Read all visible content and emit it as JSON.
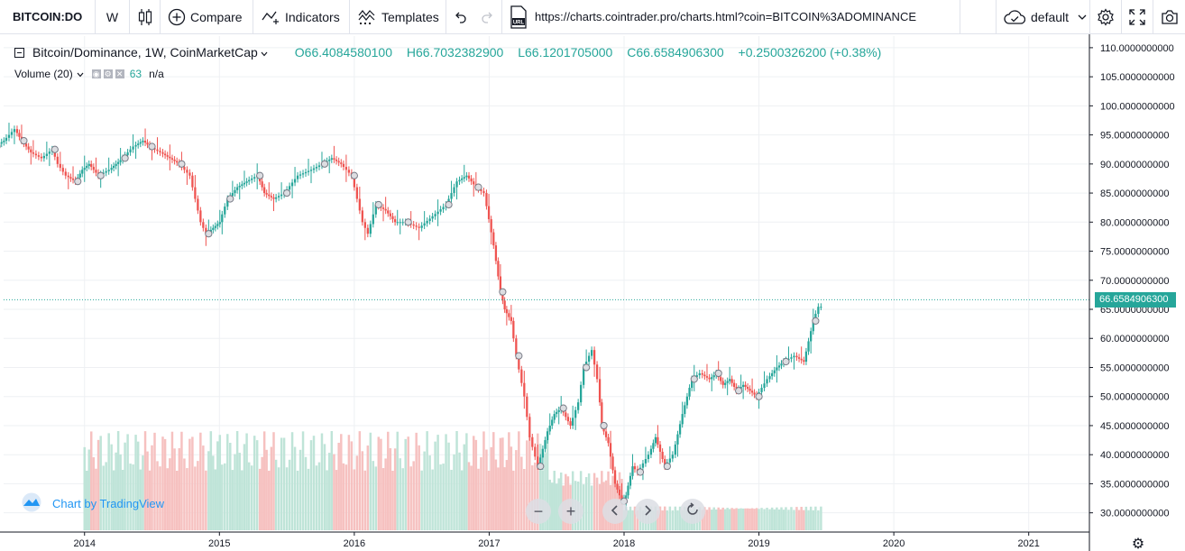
{
  "toolbar": {
    "symbol": "BITCOIN:DO",
    "interval": "W",
    "compare_label": "Compare",
    "indicators_label": "Indicators",
    "templates_label": "Templates",
    "url": "https://charts.cointrader.pro/charts.html?coin=BITCOIN%3ADOMINANCE",
    "url_icon_text": "URL",
    "layout_label": "default"
  },
  "legend": {
    "title": "Bitcoin/Dominance, 1W, CoinMarketCap",
    "open": "O66.4084580100",
    "high": "H66.7032382900",
    "low": "L66.1201705000",
    "close": "C66.6584906300",
    "change": "+0.2500326200 (+0.38%)",
    "volume_label": "Volume (20)",
    "volume_value": "63",
    "volume_na": "n/a"
  },
  "branding": {
    "label": "Chart by TradingView"
  },
  "colors": {
    "up": "#26a69a",
    "down": "#ef5350",
    "vol_up": "#bfe4d8",
    "vol_down": "#f6c1c0",
    "grid": "#eef0f3",
    "accent": "#2196f3"
  },
  "chart_data": {
    "type": "line",
    "title": "Bitcoin/Dominance, 1W, CoinMarketCap",
    "ylim": [
      27,
      112
    ],
    "xlim": [
      2013.4,
      2021.45
    ],
    "y_ticks": [
      30,
      35,
      40,
      45,
      50,
      55,
      60,
      65,
      70,
      75,
      80,
      85,
      90,
      95,
      100,
      105,
      110
    ],
    "y_tick_labels": [
      "30.0000000000",
      "35.0000000000",
      "40.0000000000",
      "45.0000000000",
      "50.0000000000",
      "55.0000000000",
      "60.0000000000",
      "65.0000000000",
      "70.0000000000",
      "75.0000000000",
      "80.0000000000",
      "85.0000000000",
      "90.0000000000",
      "95.0000000000",
      "100.0000000000",
      "105.0000000000",
      "110.0000000000"
    ],
    "x_ticks": [
      2014,
      2015,
      2016,
      2017,
      2018,
      2019,
      2020,
      2021
    ],
    "x_tick_labels": [
      "2014",
      "2015",
      "2016",
      "2017",
      "2018",
      "2019",
      "2020",
      "2021"
    ],
    "last_price": 66.65849063,
    "last_price_label": "66.6584906300",
    "series": [
      {
        "x": [
          2013.35,
          2013.42,
          2013.5,
          2013.55,
          2013.62,
          2013.7,
          2013.78,
          2013.82,
          2013.88,
          2013.95,
          2014.0,
          2014.05,
          2014.12,
          2014.2,
          2014.25,
          2014.3,
          2014.38,
          2014.45,
          2014.5,
          2014.58,
          2014.65,
          2014.72,
          2014.8,
          2014.88,
          2014.92,
          2014.97,
          2015.02,
          2015.08,
          2015.15,
          2015.22,
          2015.3,
          2015.35,
          2015.42,
          2015.5,
          2015.6,
          2015.7,
          2015.78,
          2015.85,
          2015.92,
          2016.0,
          2016.08,
          2016.12,
          2016.18,
          2016.25,
          2016.32,
          2016.4,
          2016.5,
          2016.6,
          2016.7,
          2016.78,
          2016.85,
          2016.92,
          2016.98,
          2017.05,
          2017.1,
          2017.13,
          2017.18,
          2017.22,
          2017.28,
          2017.32,
          2017.38,
          2017.45,
          2017.5,
          2017.55,
          2017.62,
          2017.68,
          2017.72,
          2017.78,
          2017.82,
          2017.85,
          2017.9,
          2017.95,
          2018.0,
          2018.03,
          2018.08,
          2018.12,
          2018.2,
          2018.25,
          2018.32,
          2018.38,
          2018.45,
          2018.52,
          2018.58,
          2018.65,
          2018.7,
          2018.75,
          2018.8,
          2018.85,
          2018.9,
          2018.95,
          2019.0,
          2019.08,
          2019.15,
          2019.2,
          2019.28,
          2019.35,
          2019.42,
          2019.48
        ],
        "y": [
          93,
          94,
          96,
          94,
          92,
          91,
          92.5,
          90,
          88,
          87,
          89,
          90,
          88,
          89,
          90,
          91,
          93,
          94,
          93,
          92,
          91,
          90,
          88,
          80,
          78,
          79,
          80,
          84,
          86,
          87,
          88,
          85,
          84,
          85,
          88,
          89,
          90,
          91,
          90,
          88,
          80,
          78,
          83,
          82,
          80,
          80,
          79,
          81,
          83,
          87,
          88,
          86,
          85,
          76,
          68,
          65,
          63,
          57,
          50,
          43,
          38,
          44,
          47,
          48,
          45,
          49,
          55,
          58,
          53,
          45,
          42,
          35,
          32,
          33,
          38,
          37,
          40,
          43,
          38,
          40,
          47,
          53,
          54,
          53,
          54,
          52,
          53,
          51,
          52,
          51,
          50,
          53,
          55,
          56,
          57,
          56,
          63,
          66.65849063
        ]
      }
    ]
  }
}
